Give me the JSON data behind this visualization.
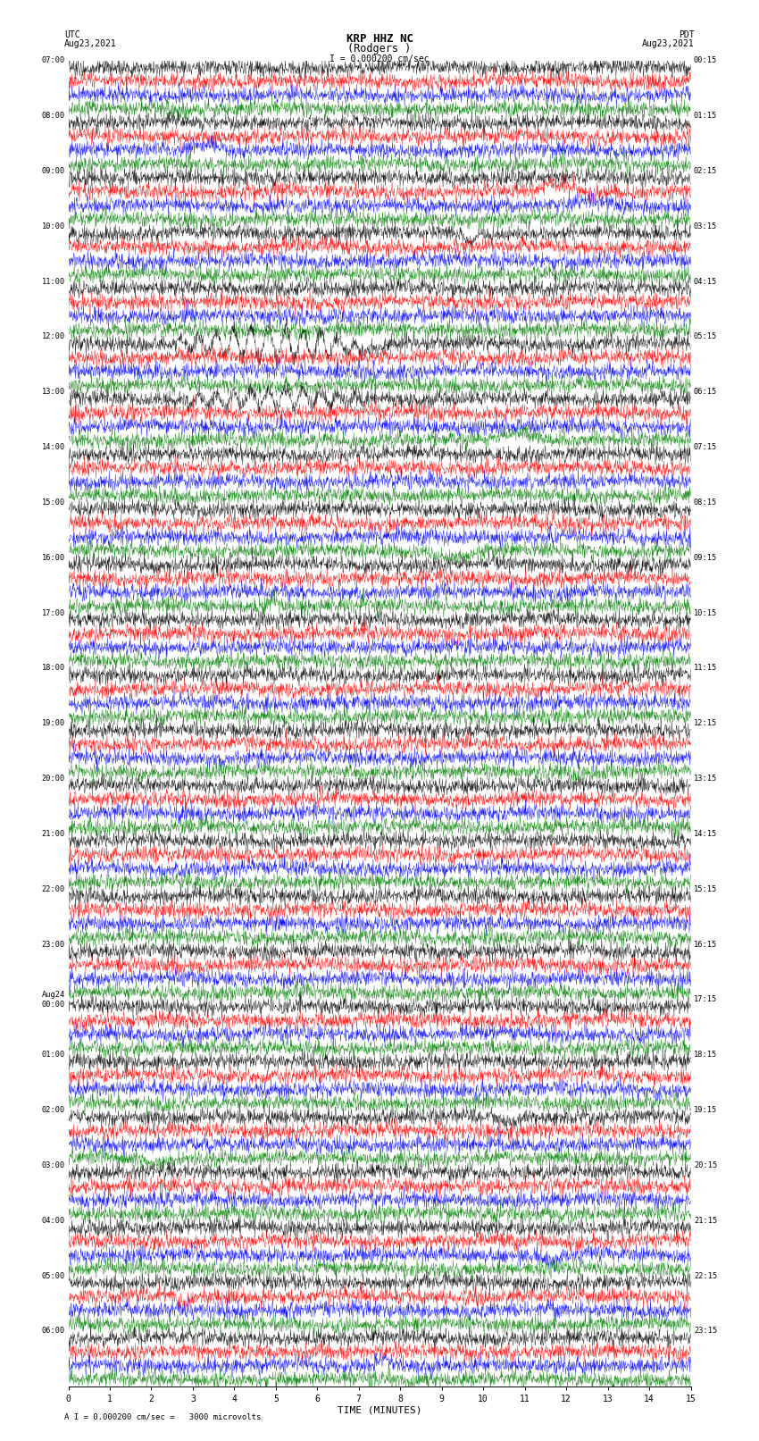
{
  "title_line1": "KRP HHZ NC",
  "title_line2": "(Rodgers )",
  "scale_label": "I = 0.000200 cm/sec",
  "bottom_label": "A I = 0.000200 cm/sec =   3000 microvolts",
  "utc_label": "UTC",
  "utc_date": "Aug23,2021",
  "pdt_label": "PDT",
  "pdt_date": "Aug23,2021",
  "xlabel": "TIME (MINUTES)",
  "left_times": [
    "07:00",
    "08:00",
    "09:00",
    "10:00",
    "11:00",
    "12:00",
    "13:00",
    "14:00",
    "15:00",
    "16:00",
    "17:00",
    "18:00",
    "19:00",
    "20:00",
    "21:00",
    "22:00",
    "23:00",
    "Aug24\n00:00",
    "01:00",
    "02:00",
    "03:00",
    "04:00",
    "05:00",
    "06:00"
  ],
  "right_times": [
    "00:15",
    "01:15",
    "02:15",
    "03:15",
    "04:15",
    "05:15",
    "06:15",
    "07:15",
    "08:15",
    "09:15",
    "10:15",
    "11:15",
    "12:15",
    "13:15",
    "14:15",
    "15:15",
    "16:15",
    "17:15",
    "18:15",
    "19:15",
    "20:15",
    "21:15",
    "22:15",
    "23:15"
  ],
  "num_rows": 24,
  "traces_per_row": 4,
  "colors": [
    "black",
    "red",
    "blue",
    "green"
  ],
  "bg_color": "white",
  "trace_amplitude": 0.38,
  "num_points": 1800,
  "xmin": 0,
  "xmax": 15,
  "xticks": [
    0,
    1,
    2,
    3,
    4,
    5,
    6,
    7,
    8,
    9,
    10,
    11,
    12,
    13,
    14,
    15
  ],
  "earthquake_rows": [
    5,
    6
  ],
  "earthquake_amps": [
    3.0,
    1.8
  ]
}
